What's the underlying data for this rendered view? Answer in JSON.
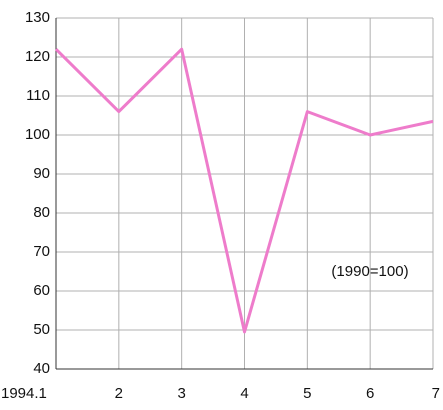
{
  "chart_data": {
    "type": "line",
    "categories": [
      "1994.1",
      "2",
      "3",
      "4",
      "5",
      "6",
      "7"
    ],
    "series": [
      {
        "color": "#ee7ccb",
        "values": [
          122,
          106,
          122,
          49.5,
          106,
          100,
          103.5
        ]
      }
    ],
    "ylim": [
      40,
      130
    ],
    "yticks": [
      40,
      50,
      60,
      70,
      80,
      90,
      100,
      110,
      120,
      130
    ],
    "grid": true,
    "annotation": "(1990=100)"
  }
}
